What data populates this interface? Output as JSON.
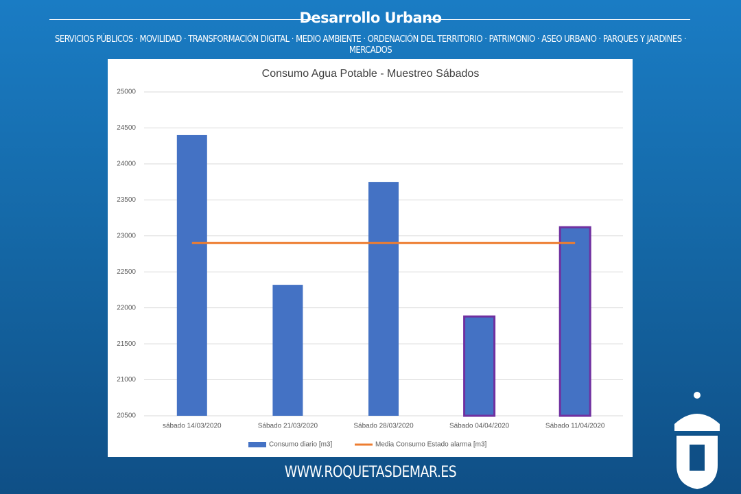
{
  "header": {
    "title": "Desarrollo Urbano",
    "subtitle": "SERVICIOS PÚBLICOS · MOVILIDAD · TRANSFORMACIÓN DIGITAL · MEDIO AMBIENTE · ORDENACIÓN DEL TERRITORIO · PATRIMONIO · ASEO URBANO · PARQUES Y JARDINES · MERCADOS"
  },
  "footer": "WWW.ROQUETASDEMAR.ES",
  "chart_data": {
    "type": "bar",
    "title": "Consumo Agua Potable - Muestreo Sábados",
    "categories": [
      "sábado 14/03/2020",
      "Sábado 21/03/2020",
      "Sábado 28/03/2020",
      "Sábado 04/04/2020",
      "Sábado 11/04/2020"
    ],
    "series": [
      {
        "name": "Consumo diario [m3]",
        "type": "bar",
        "color": "#4472c4",
        "values": [
          24400,
          22320,
          23750,
          21880,
          23120
        ],
        "edgecolors": [
          "#4472c4",
          "#4472c4",
          "#4472c4",
          "#7030a0",
          "#7030a0"
        ]
      },
      {
        "name": "Media Consumo Estado alarma [m3]",
        "type": "line",
        "color": "#ed7d31",
        "values": [
          22900,
          22900,
          22900,
          22900,
          22900
        ]
      }
    ],
    "ylim": [
      20500,
      25000
    ],
    "yticks": [
      20500,
      21000,
      21500,
      22000,
      22500,
      23000,
      23500,
      24000,
      24500,
      25000
    ],
    "grid": true,
    "legend": "bottom"
  }
}
